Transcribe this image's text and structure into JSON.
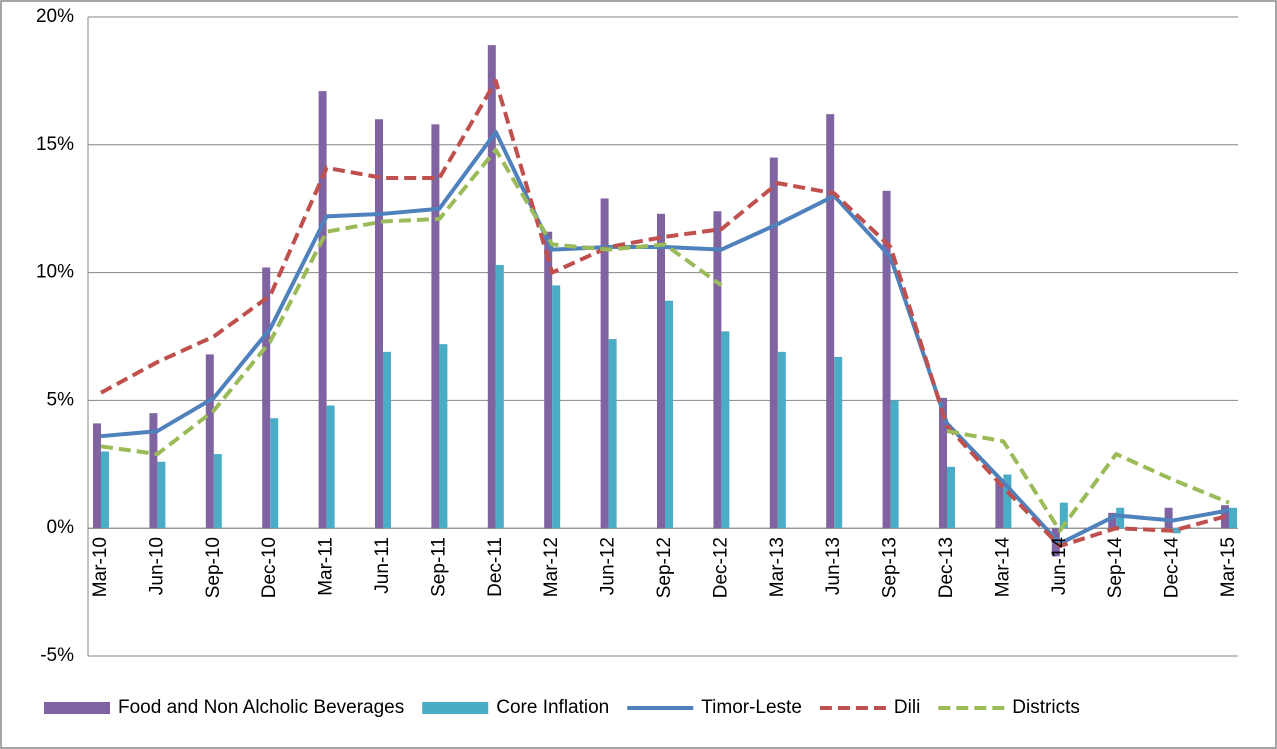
{
  "chart_data": {
    "type": "bar-line",
    "categories": [
      "Mar-10",
      "Jun-10",
      "Sep-10",
      "Dec-10",
      "Mar-11",
      "Jun-11",
      "Sep-11",
      "Dec-11",
      "Mar-12",
      "Jun-12",
      "Sep-12",
      "Dec-12",
      "Mar-13",
      "Jun-13",
      "Sep-13",
      "Dec-13",
      "Mar-14",
      "Jun-14",
      "Sep-14",
      "Dec-14",
      "Mar-15"
    ],
    "series": [
      {
        "name": "Food and Non Alcholic Beverages",
        "type": "bar",
        "color": "#8064a2",
        "values": [
          4.1,
          4.5,
          6.8,
          10.2,
          17.1,
          16.0,
          15.8,
          18.9,
          11.6,
          12.9,
          12.3,
          12.4,
          14.5,
          16.2,
          13.2,
          5.1,
          1.9,
          -1.1,
          0.6,
          0.8,
          0.9
        ]
      },
      {
        "name": "Core Inflation",
        "type": "bar",
        "color": "#4bacc6",
        "values": [
          3.0,
          2.6,
          2.9,
          4.3,
          4.8,
          6.9,
          7.2,
          10.3,
          9.5,
          7.4,
          8.9,
          7.7,
          6.9,
          6.7,
          5.0,
          2.4,
          2.1,
          1.0,
          0.8,
          -0.2,
          0.8
        ]
      },
      {
        "name": "Timor-Leste",
        "type": "line",
        "dash": "solid",
        "color": "#4f81bd",
        "values": [
          3.6,
          3.8,
          5.1,
          7.8,
          12.2,
          12.3,
          12.5,
          15.5,
          10.9,
          11.0,
          11.0,
          10.9,
          11.9,
          13.0,
          10.6,
          4.1,
          1.8,
          -0.6,
          0.5,
          0.3,
          0.7
        ]
      },
      {
        "name": "Dili",
        "type": "line",
        "dash": "dashed",
        "color": "#c0504d",
        "values": [
          5.3,
          6.5,
          7.5,
          9.1,
          14.1,
          13.7,
          13.7,
          17.5,
          10.0,
          11.0,
          11.4,
          11.7,
          13.5,
          13.1,
          11.0,
          4.0,
          1.6,
          -0.7,
          0.0,
          -0.1,
          0.5
        ]
      },
      {
        "name": "Districts",
        "type": "line",
        "dash": "dashed",
        "color": "#9bbb59",
        "values": [
          3.2,
          2.9,
          4.6,
          7.3,
          11.6,
          12.0,
          12.1,
          14.8,
          11.1,
          10.9,
          11.1,
          9.5,
          null,
          null,
          null,
          3.8,
          3.4,
          -0.1,
          2.9,
          1.9,
          1.0
        ]
      }
    ],
    "ylim": [
      -5,
      20
    ],
    "yticks": [
      {
        "value": -5,
        "label": "-5%"
      },
      {
        "value": 0,
        "label": "0%"
      },
      {
        "value": 5,
        "label": "5%"
      },
      {
        "value": 10,
        "label": "10%"
      },
      {
        "value": 15,
        "label": "15%"
      },
      {
        "value": 20,
        "label": "20%"
      }
    ],
    "grid": true,
    "legend": "bottom"
  }
}
